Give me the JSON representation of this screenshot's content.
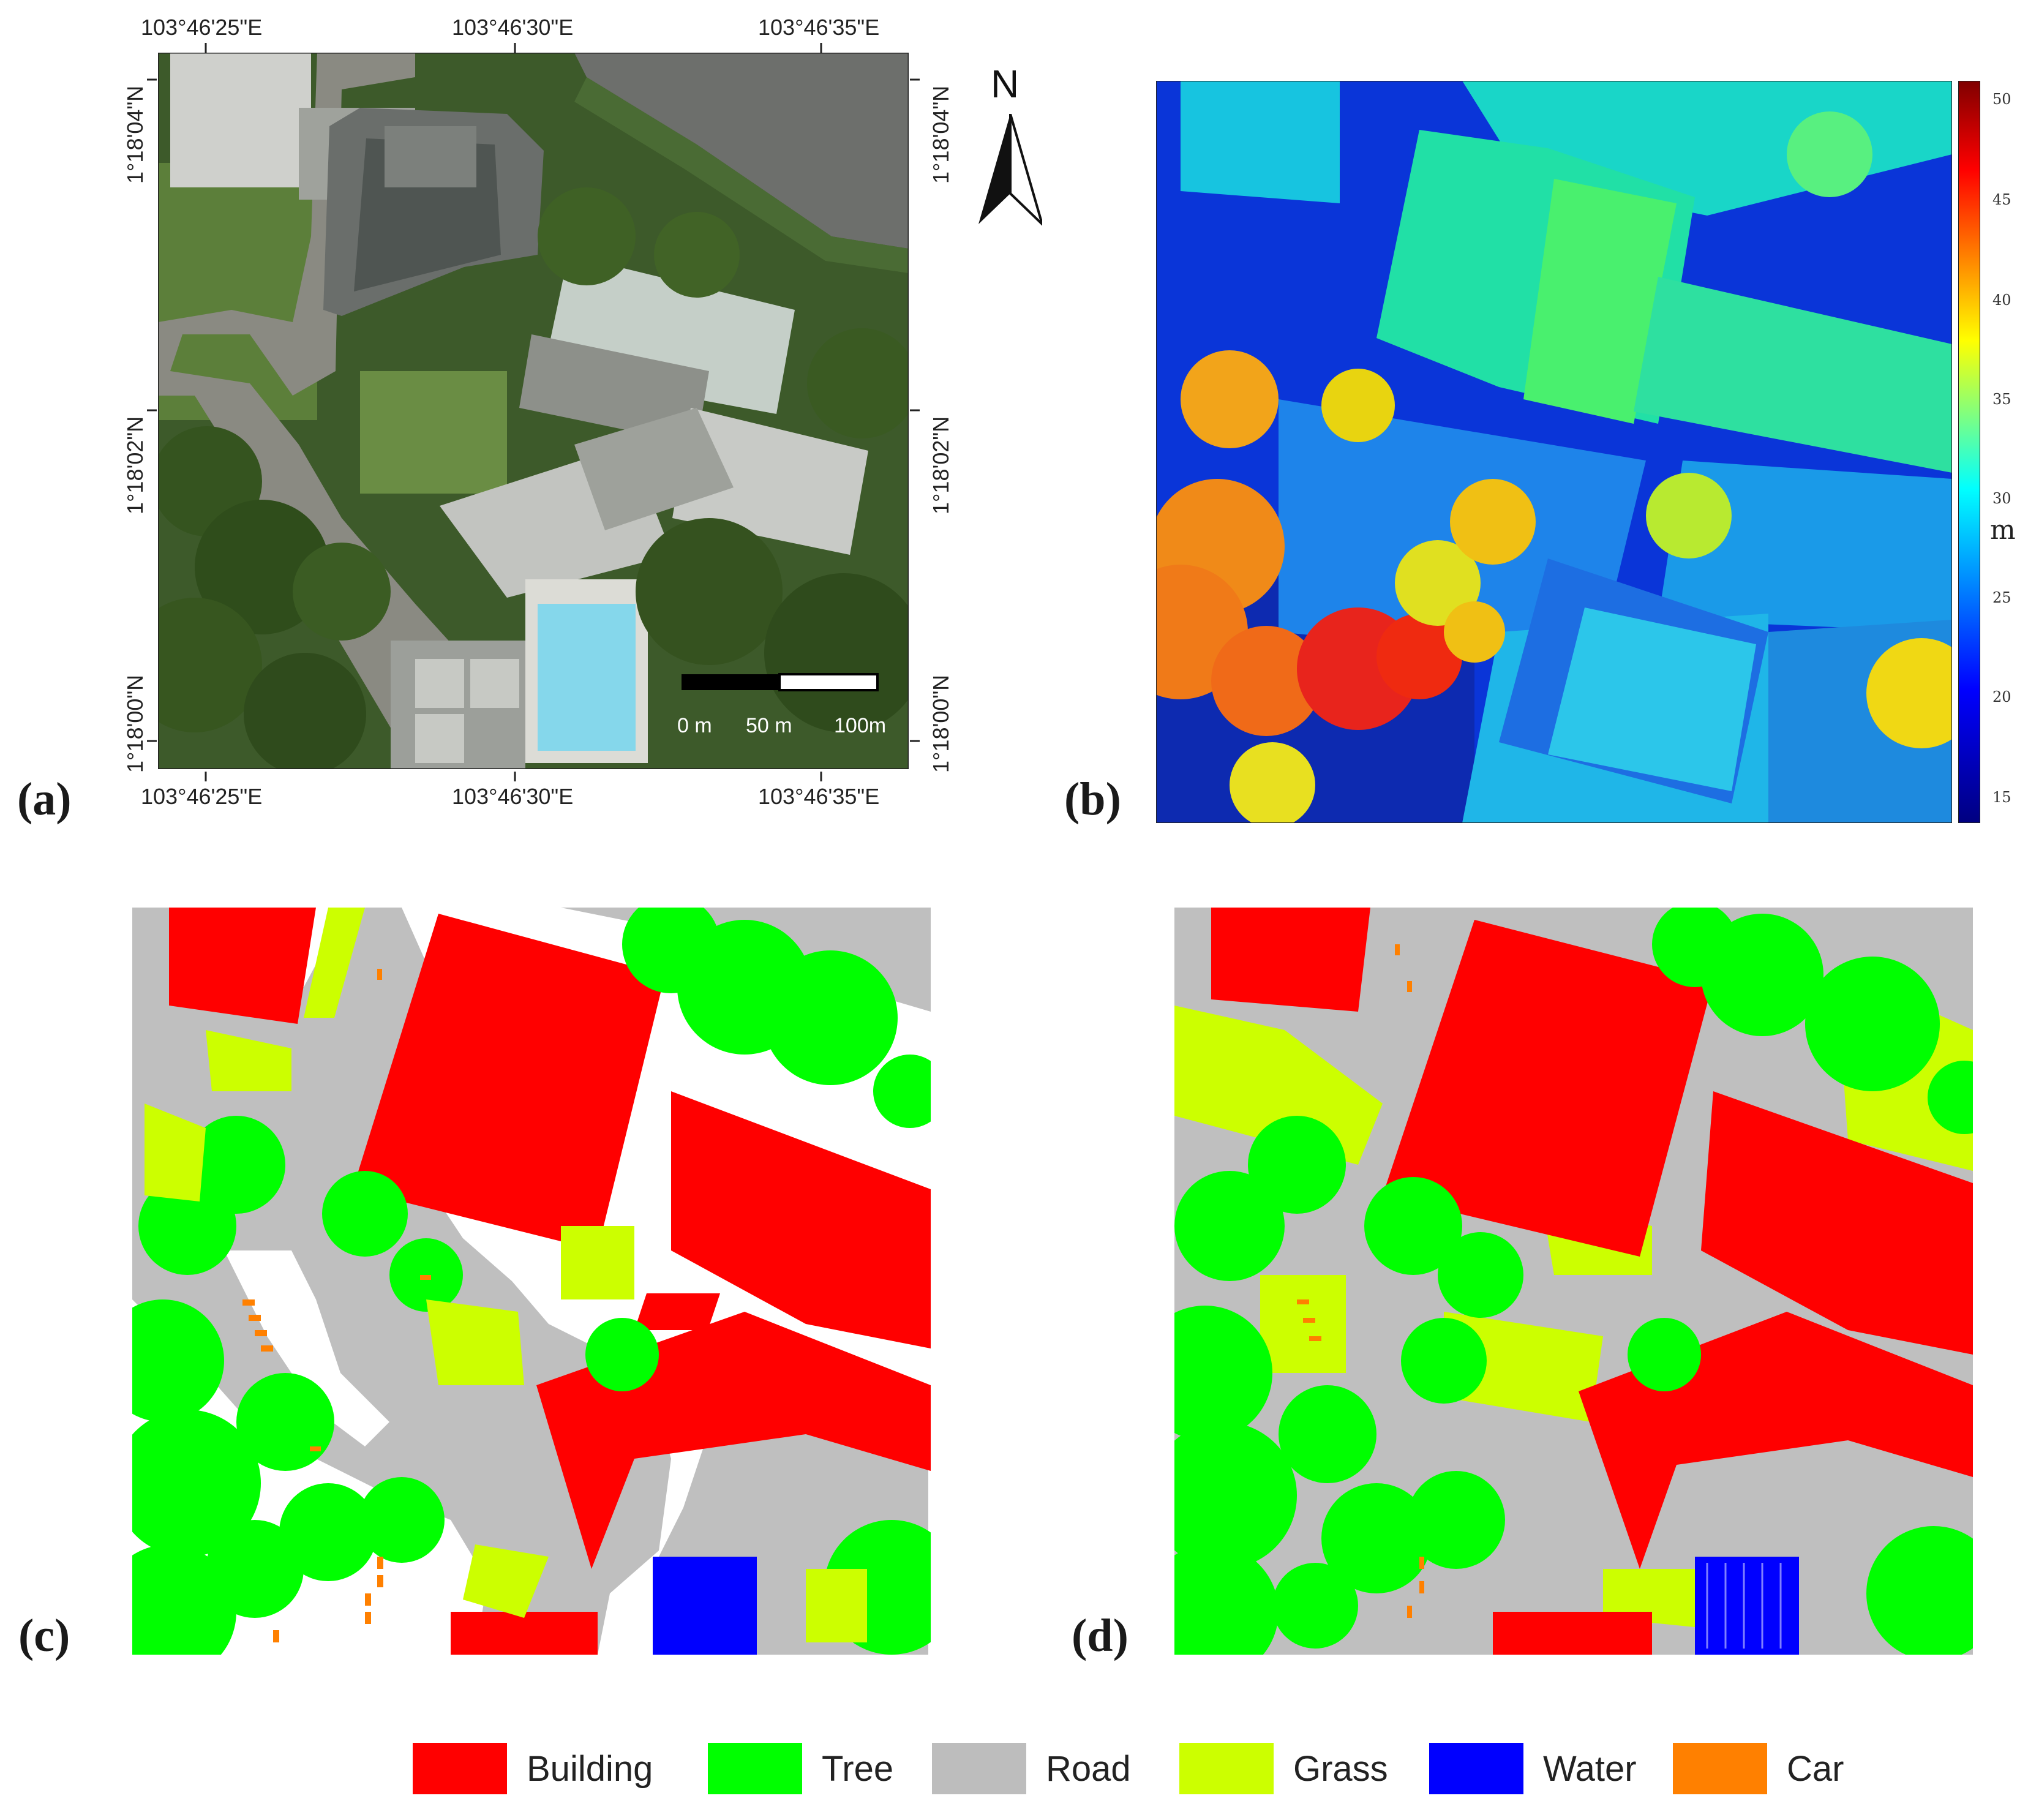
{
  "panels": {
    "a": "(a)",
    "b": "(b)",
    "c": "(c)",
    "d": "(d)"
  },
  "coords": {
    "top": [
      "103°46'25\"E",
      "103°46'30\"E",
      "103°46'35\"E"
    ],
    "bottom": [
      "103°46'25\"E",
      "103°46'30\"E",
      "103°46'35\"E"
    ],
    "left": [
      "1°18'04\"N",
      "1°18'02\"N",
      "1°18'00\"N"
    ],
    "right": [
      "1°18'04\"N",
      "1°18'02\"N",
      "1°18'00\"N"
    ]
  },
  "north_arrow": {
    "label": "N"
  },
  "scalebar": {
    "labels": [
      "0 m",
      "50 m",
      "100m"
    ]
  },
  "colorbar": {
    "ticks": [
      "50",
      "45",
      "40",
      "35",
      "30",
      "25",
      "20",
      "15"
    ],
    "unit": "m"
  },
  "legend": [
    {
      "label": "Building",
      "color": "#ff0000"
    },
    {
      "label": "Tree",
      "color": "#00ff00"
    },
    {
      "label": "Road",
      "color": "#bdbdbd"
    },
    {
      "label": "Grass",
      "color": "#ccff00"
    },
    {
      "label": "Water",
      "color": "#0000ff"
    },
    {
      "label": "Car",
      "color": "#ff8000"
    }
  ]
}
